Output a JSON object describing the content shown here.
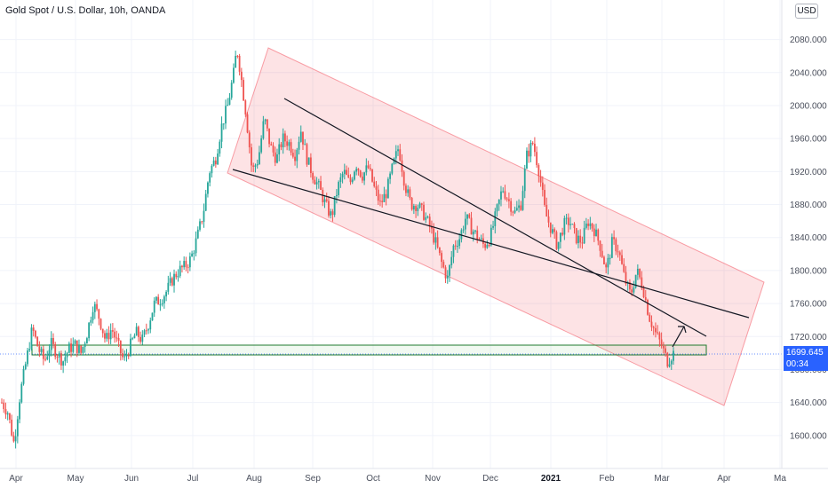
{
  "header": {
    "title": "Gold Spot / U.S. Dollar, 10h, OANDA"
  },
  "currency_button": "USD",
  "last_price": {
    "price": "1699.645",
    "countdown": "00:34"
  },
  "chart_data": {
    "type": "candlestick",
    "title": "Gold Spot / U.S. Dollar, 10h, OANDA",
    "y_axis": {
      "ticks": [
        "1600.000",
        "1640.000",
        "1680.000",
        "1720.000",
        "1760.000",
        "1800.000",
        "1840.000",
        "1880.000",
        "1920.000",
        "1960.000",
        "2000.000",
        "2040.000",
        "2080.000"
      ],
      "range": [
        1560,
        2128
      ],
      "position": "right"
    },
    "x_axis": {
      "ticks": [
        "Apr",
        "May",
        "Jun",
        "Jul",
        "Aug",
        "Sep",
        "Oct",
        "Nov",
        "Dec",
        "2021",
        "Feb",
        "Mar",
        "Apr",
        "Ma"
      ]
    },
    "series_path": [
      [
        0,
        1640
      ],
      [
        2,
        1628
      ],
      [
        4,
        1590
      ],
      [
        6,
        1650
      ],
      [
        8,
        1690
      ],
      [
        10,
        1730
      ],
      [
        12,
        1705
      ],
      [
        14,
        1690
      ],
      [
        16,
        1712
      ],
      [
        18,
        1700
      ],
      [
        20,
        1690
      ],
      [
        22,
        1705
      ],
      [
        24,
        1710
      ],
      [
        26,
        1700
      ],
      [
        28,
        1725
      ],
      [
        30,
        1760
      ],
      [
        32,
        1742
      ],
      [
        34,
        1715
      ],
      [
        36,
        1730
      ],
      [
        38,
        1710
      ],
      [
        40,
        1690
      ],
      [
        42,
        1708
      ],
      [
        44,
        1725
      ],
      [
        46,
        1715
      ],
      [
        48,
        1735
      ],
      [
        50,
        1760
      ],
      [
        52,
        1765
      ],
      [
        54,
        1775
      ],
      [
        56,
        1790
      ],
      [
        58,
        1800
      ],
      [
        60,
        1805
      ],
      [
        62,
        1815
      ],
      [
        64,
        1840
      ],
      [
        66,
        1870
      ],
      [
        68,
        1920
      ],
      [
        70,
        1935
      ],
      [
        72,
        1975
      ],
      [
        74,
        2000
      ],
      [
        76,
        2040
      ],
      [
        77,
        2070
      ],
      [
        78,
        2045
      ],
      [
        80,
        1990
      ],
      [
        82,
        1920
      ],
      [
        84,
        1935
      ],
      [
        86,
        1985
      ],
      [
        88,
        1950
      ],
      [
        90,
        1935
      ],
      [
        92,
        1960
      ],
      [
        94,
        1955
      ],
      [
        96,
        1940
      ],
      [
        98,
        1970
      ],
      [
        100,
        1935
      ],
      [
        102,
        1915
      ],
      [
        104,
        1900
      ],
      [
        106,
        1880
      ],
      [
        108,
        1865
      ],
      [
        110,
        1900
      ],
      [
        112,
        1920
      ],
      [
        114,
        1905
      ],
      [
        116,
        1930
      ],
      [
        118,
        1915
      ],
      [
        120,
        1925
      ],
      [
        122,
        1900
      ],
      [
        124,
        1880
      ],
      [
        126,
        1895
      ],
      [
        128,
        1925
      ],
      [
        130,
        1950
      ],
      [
        132,
        1905
      ],
      [
        134,
        1880
      ],
      [
        136,
        1880
      ],
      [
        138,
        1870
      ],
      [
        140,
        1855
      ],
      [
        142,
        1835
      ],
      [
        144,
        1810
      ],
      [
        146,
        1790
      ],
      [
        148,
        1830
      ],
      [
        150,
        1840
      ],
      [
        152,
        1865
      ],
      [
        154,
        1850
      ],
      [
        156,
        1840
      ],
      [
        158,
        1830
      ],
      [
        160,
        1840
      ],
      [
        162,
        1870
      ],
      [
        164,
        1900
      ],
      [
        166,
        1885
      ],
      [
        168,
        1870
      ],
      [
        170,
        1880
      ],
      [
        172,
        1940
      ],
      [
        174,
        1955
      ],
      [
        176,
        1920
      ],
      [
        178,
        1870
      ],
      [
        180,
        1850
      ],
      [
        182,
        1830
      ],
      [
        184,
        1855
      ],
      [
        186,
        1860
      ],
      [
        188,
        1840
      ],
      [
        190,
        1835
      ],
      [
        192,
        1860
      ],
      [
        194,
        1850
      ],
      [
        196,
        1830
      ],
      [
        198,
        1800
      ],
      [
        200,
        1835
      ],
      [
        202,
        1825
      ],
      [
        204,
        1790
      ],
      [
        206,
        1770
      ],
      [
        208,
        1800
      ],
      [
        210,
        1780
      ],
      [
        212,
        1745
      ],
      [
        214,
        1725
      ],
      [
        216,
        1710
      ],
      [
        218,
        1690
      ],
      [
        220,
        1700
      ]
    ]
  }
}
